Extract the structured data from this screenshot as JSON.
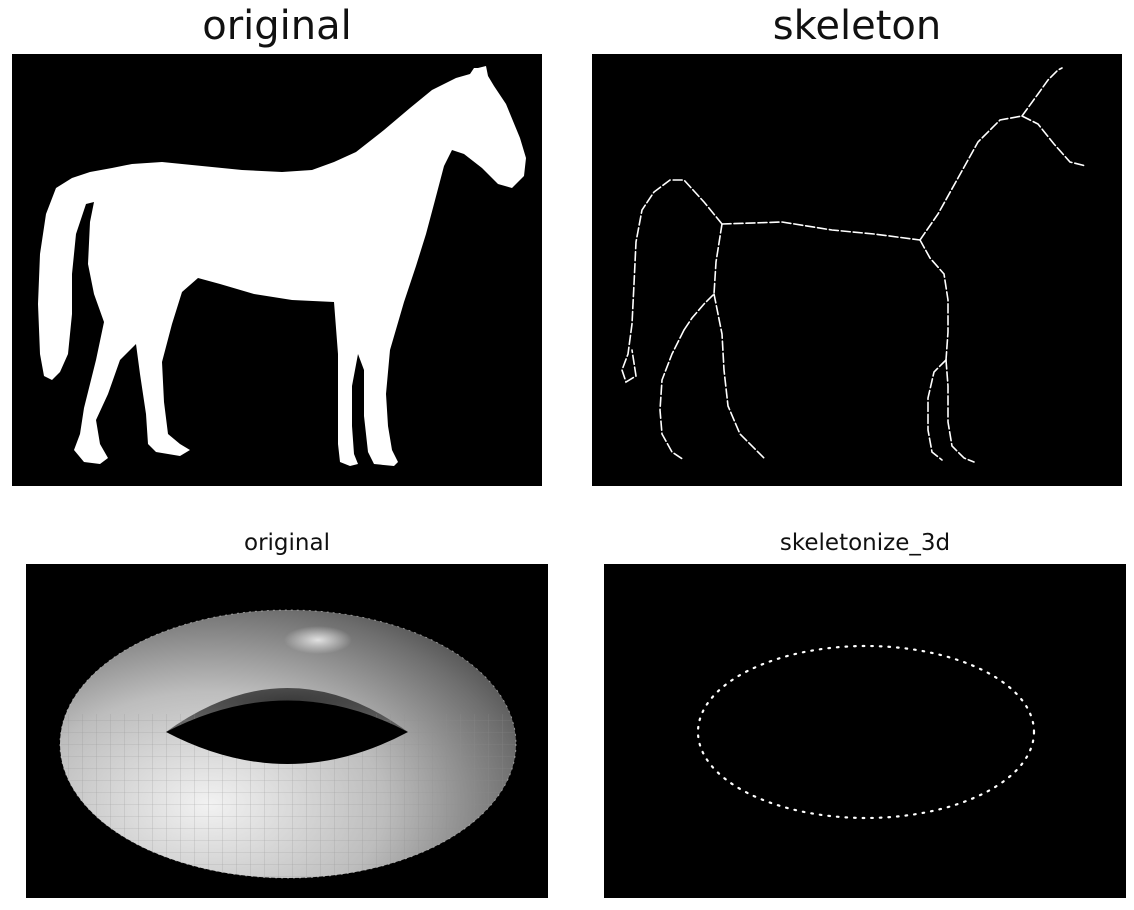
{
  "figure": {
    "panels": [
      {
        "title": "original"
      },
      {
        "title": "skeleton"
      },
      {
        "title": "original"
      },
      {
        "title": "skeletonize_3d"
      }
    ]
  }
}
